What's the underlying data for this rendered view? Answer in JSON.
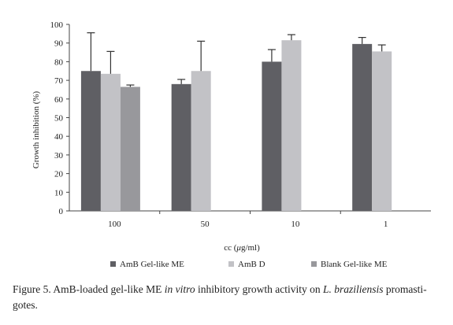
{
  "chart_data": {
    "type": "bar",
    "ylabel": "Growth inhibition (%)",
    "xlabel_prefix": "cc (",
    "xlabel_unit_mu": "μ",
    "xlabel_suffix": "g/ml)",
    "ylim": [
      0,
      100
    ],
    "yticks": [
      0,
      10,
      20,
      30,
      40,
      50,
      60,
      70,
      80,
      90,
      100
    ],
    "categories": [
      "100",
      "50",
      "10",
      "1"
    ],
    "grid": false,
    "legend_position": "bottom",
    "series": [
      {
        "name": "AmB Gel-like ME",
        "color": "#5f5f64",
        "values": [
          75,
          68,
          80,
          89.5
        ],
        "errors": [
          20.5,
          2.5,
          6.5,
          3.5
        ]
      },
      {
        "name": "AmB D",
        "color": "#c2c2c6",
        "values": [
          73.5,
          75,
          91.5,
          85.5
        ],
        "errors": [
          12,
          16,
          3,
          3.5
        ]
      },
      {
        "name": "Blank Gel-like ME",
        "color": "#98989c",
        "values": [
          66.5,
          null,
          null,
          null
        ],
        "errors": [
          1,
          null,
          null,
          null
        ]
      }
    ]
  },
  "caption": {
    "part1": "Figure 5. AmB-loaded gel-like ME ",
    "italic1": "in vitro",
    "part2": " inhibitory growth activity on ",
    "italic2": "L. braziliensis",
    "part3": " promasti-gotes."
  }
}
